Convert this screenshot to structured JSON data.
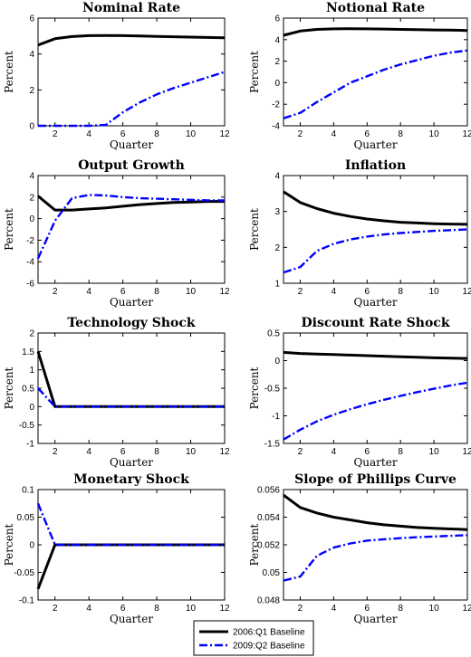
{
  "legend": {
    "items": [
      {
        "label": "2006:Q1 Baseline",
        "color": "#000000",
        "style": "solid"
      },
      {
        "label": "2009:Q2 Baseline",
        "color": "#0000ff",
        "style": "dash-dot"
      }
    ],
    "placement": "bottom-center"
  },
  "chart_data": [
    {
      "type": "line",
      "title": "Nominal Rate",
      "xlabel": "Quarter",
      "ylabel": "Percent",
      "xlim": [
        1,
        12
      ],
      "ylim": [
        0,
        6
      ],
      "xticks": [
        2,
        4,
        6,
        8,
        10,
        12
      ],
      "yticks": [
        0,
        2,
        4,
        6
      ],
      "x": [
        1,
        2,
        3,
        4,
        5,
        6,
        7,
        8,
        9,
        10,
        11,
        12
      ],
      "series": [
        {
          "name": "2006:Q1 Baseline",
          "values": [
            4.5,
            4.85,
            4.97,
            5.02,
            5.03,
            5.02,
            5.0,
            4.98,
            4.96,
            4.94,
            4.92,
            4.9
          ]
        },
        {
          "name": "2009:Q2 Baseline",
          "values": [
            0,
            0,
            0,
            0,
            0.05,
            0.75,
            1.3,
            1.75,
            2.1,
            2.4,
            2.7,
            3.0
          ]
        }
      ]
    },
    {
      "type": "line",
      "title": "Notional Rate",
      "xlabel": "Quarter",
      "ylabel": "Percent",
      "xlim": [
        1,
        12
      ],
      "ylim": [
        -4,
        6
      ],
      "xticks": [
        2,
        4,
        6,
        8,
        10,
        12
      ],
      "yticks": [
        -4,
        -2,
        0,
        2,
        4,
        6
      ],
      "x": [
        1,
        2,
        3,
        4,
        5,
        6,
        7,
        8,
        9,
        10,
        11,
        12
      ],
      "series": [
        {
          "name": "2006:Q1 Baseline",
          "values": [
            4.4,
            4.8,
            4.95,
            5.0,
            5.02,
            5.0,
            4.98,
            4.95,
            4.93,
            4.9,
            4.88,
            4.85
          ]
        },
        {
          "name": "2009:Q2 Baseline",
          "values": [
            -3.3,
            -2.8,
            -1.8,
            -0.9,
            0.0,
            0.6,
            1.2,
            1.7,
            2.1,
            2.5,
            2.8,
            3.0
          ]
        }
      ]
    },
    {
      "type": "line",
      "title": "Output Growth",
      "xlabel": "Quarter",
      "ylabel": "Percent",
      "xlim": [
        1,
        12
      ],
      "ylim": [
        -6,
        4
      ],
      "xticks": [
        2,
        4,
        6,
        8,
        10,
        12
      ],
      "yticks": [
        -6,
        -4,
        -2,
        0,
        2,
        4
      ],
      "x": [
        1,
        2,
        3,
        4,
        5,
        6,
        7,
        8,
        9,
        10,
        11,
        12
      ],
      "series": [
        {
          "name": "2006:Q1 Baseline",
          "values": [
            2.1,
            0.8,
            0.8,
            0.9,
            1.0,
            1.15,
            1.3,
            1.4,
            1.5,
            1.55,
            1.6,
            1.6
          ]
        },
        {
          "name": "2009:Q2 Baseline",
          "values": [
            -3.7,
            -0.2,
            1.9,
            2.2,
            2.15,
            2.0,
            1.9,
            1.85,
            1.8,
            1.75,
            1.7,
            1.7
          ]
        }
      ]
    },
    {
      "type": "line",
      "title": "Inflation",
      "xlabel": "Quarter",
      "ylabel": "Percent",
      "xlim": [
        1,
        12
      ],
      "ylim": [
        1,
        4
      ],
      "xticks": [
        2,
        4,
        6,
        8,
        10,
        12
      ],
      "yticks": [
        1,
        2,
        3,
        4
      ],
      "x": [
        1,
        2,
        3,
        4,
        5,
        6,
        7,
        8,
        9,
        10,
        11,
        12
      ],
      "series": [
        {
          "name": "2006:Q1 Baseline",
          "values": [
            3.55,
            3.25,
            3.08,
            2.95,
            2.86,
            2.79,
            2.74,
            2.7,
            2.68,
            2.66,
            2.65,
            2.64
          ]
        },
        {
          "name": "2009:Q2 Baseline",
          "values": [
            1.3,
            1.45,
            1.9,
            2.1,
            2.22,
            2.3,
            2.36,
            2.4,
            2.43,
            2.46,
            2.48,
            2.5
          ]
        }
      ]
    },
    {
      "type": "line",
      "title": "Technology Shock",
      "xlabel": "Quarter",
      "ylabel": "Percent",
      "xlim": [
        1,
        12
      ],
      "ylim": [
        -1,
        2
      ],
      "xticks": [
        2,
        4,
        6,
        8,
        10,
        12
      ],
      "yticks": [
        -1,
        -0.5,
        0,
        0.5,
        1,
        1.5,
        2
      ],
      "x": [
        1,
        2,
        3,
        4,
        5,
        6,
        7,
        8,
        9,
        10,
        11,
        12
      ],
      "series": [
        {
          "name": "2006:Q1 Baseline",
          "values": [
            1.5,
            0,
            0,
            0,
            0,
            0,
            0,
            0,
            0,
            0,
            0,
            0
          ]
        },
        {
          "name": "2009:Q2 Baseline",
          "values": [
            0.5,
            0,
            0,
            0,
            0,
            0,
            0,
            0,
            0,
            0,
            0,
            0
          ]
        }
      ]
    },
    {
      "type": "line",
      "title": "Discount Rate Shock",
      "xlabel": "Quarter",
      "ylabel": "Percent",
      "xlim": [
        1,
        12
      ],
      "ylim": [
        -1.5,
        0.5
      ],
      "xticks": [
        2,
        4,
        6,
        8,
        10,
        12
      ],
      "yticks": [
        -1.5,
        -1,
        -0.5,
        0,
        0.5
      ],
      "x": [
        1,
        2,
        3,
        4,
        5,
        6,
        7,
        8,
        9,
        10,
        11,
        12
      ],
      "series": [
        {
          "name": "2006:Q1 Baseline",
          "values": [
            0.15,
            0.13,
            0.12,
            0.11,
            0.1,
            0.09,
            0.08,
            0.07,
            0.06,
            0.05,
            0.045,
            0.04
          ]
        },
        {
          "name": "2009:Q2 Baseline",
          "values": [
            -1.43,
            -1.25,
            -1.1,
            -0.98,
            -0.88,
            -0.79,
            -0.71,
            -0.64,
            -0.57,
            -0.51,
            -0.45,
            -0.4
          ]
        }
      ]
    },
    {
      "type": "line",
      "title": "Monetary Shock",
      "xlabel": "Quarter",
      "ylabel": "Percent",
      "xlim": [
        1,
        12
      ],
      "ylim": [
        -0.1,
        0.1
      ],
      "xticks": [
        2,
        4,
        6,
        8,
        10,
        12
      ],
      "yticks": [
        -0.1,
        -0.05,
        0,
        0.05,
        0.1
      ],
      "x": [
        1,
        2,
        3,
        4,
        5,
        6,
        7,
        8,
        9,
        10,
        11,
        12
      ],
      "series": [
        {
          "name": "2006:Q1 Baseline",
          "values": [
            -0.08,
            0,
            0,
            0,
            0,
            0,
            0,
            0,
            0,
            0,
            0,
            0
          ]
        },
        {
          "name": "2009:Q2 Baseline",
          "values": [
            0.075,
            0,
            0,
            0,
            0,
            0,
            0,
            0,
            0,
            0,
            0,
            0
          ]
        }
      ]
    },
    {
      "type": "line",
      "title": "Slope of Phillips Curve",
      "xlabel": "Quarter",
      "ylabel": "Percent",
      "xlim": [
        1,
        12
      ],
      "ylim": [
        0.048,
        0.056
      ],
      "xticks": [
        2,
        4,
        6,
        8,
        10,
        12
      ],
      "yticks": [
        0.048,
        0.05,
        0.052,
        0.054,
        0.056
      ],
      "x": [
        1,
        2,
        3,
        4,
        5,
        6,
        7,
        8,
        9,
        10,
        11,
        12
      ],
      "series": [
        {
          "name": "2006:Q1 Baseline",
          "values": [
            0.0556,
            0.0547,
            0.0543,
            0.054,
            0.0538,
            0.0536,
            0.05345,
            0.05335,
            0.05325,
            0.0532,
            0.05315,
            0.0531
          ]
        },
        {
          "name": "2009:Q2 Baseline",
          "values": [
            0.0494,
            0.0497,
            0.0512,
            0.0518,
            0.0521,
            0.0523,
            0.0524,
            0.05248,
            0.05255,
            0.0526,
            0.05265,
            0.0527
          ]
        }
      ]
    }
  ]
}
